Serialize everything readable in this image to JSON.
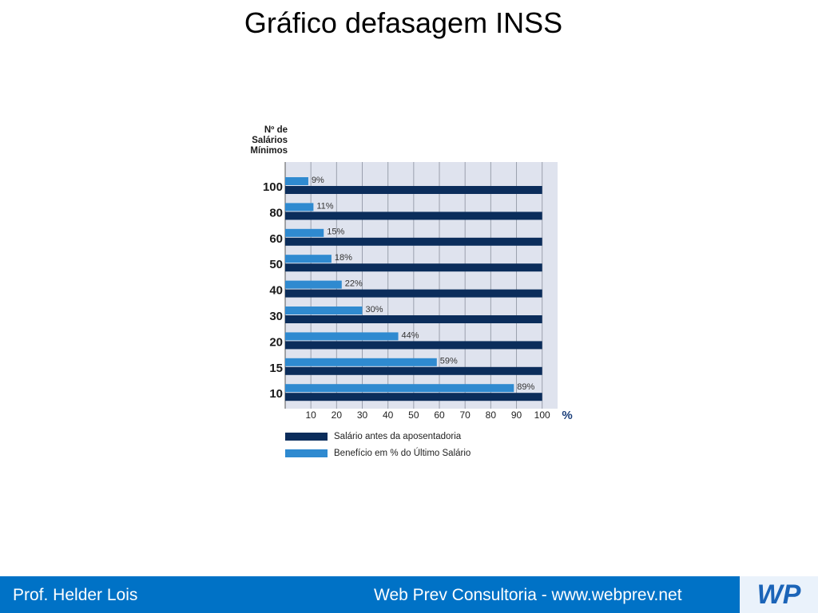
{
  "title": "Gráfico defasagem INSS",
  "chart_data": {
    "type": "hbar",
    "y_label": "Nº de Salários Mínimos",
    "x_label": "%",
    "categories": [
      "100",
      "80",
      "60",
      "50",
      "40",
      "30",
      "20",
      "15",
      "10"
    ],
    "series": [
      {
        "name": "Salário antes da aposentadoria",
        "color": "#0b2d5b",
        "values": [
          100,
          100,
          100,
          100,
          100,
          100,
          100,
          100,
          100
        ]
      },
      {
        "name": "Benefício em % do Último Salário",
        "color": "#2f8ad0",
        "values": [
          9,
          11,
          15,
          18,
          22,
          30,
          44,
          59,
          89
        ],
        "value_labels": [
          "9%",
          "11%",
          "15%",
          "18%",
          "22%",
          "30%",
          "44%",
          "59%",
          "89%"
        ]
      }
    ],
    "xlim": [
      0,
      106
    ],
    "xticks": [
      10,
      20,
      30,
      40,
      50,
      60,
      70,
      80,
      90,
      100
    ],
    "grid": true
  },
  "footer": {
    "left": "Prof. Helder Lois",
    "right": "Web Prev Consultoria - www.webprev.net",
    "logo": "WP"
  }
}
